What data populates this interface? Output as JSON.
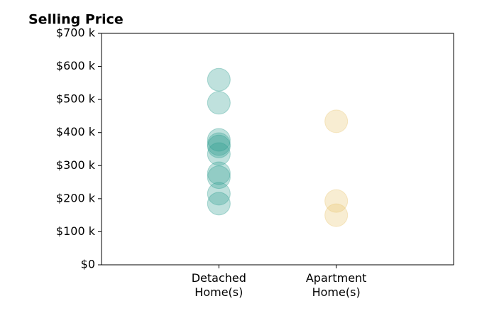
{
  "chart_data": {
    "type": "strip",
    "title": "Selling Price",
    "categories": [
      "Detached\nHome(s)",
      "Apartment\nHome(s)"
    ],
    "values": [
      [
        560000,
        490000,
        378000,
        365000,
        358000,
        335000,
        277000,
        265000,
        215000,
        185000
      ],
      [
        434000,
        193000,
        150000
      ]
    ],
    "colors": [
      "#2a9d8f",
      "#e9c46a"
    ],
    "ylim": [
      0,
      700000
    ],
    "yticks": [
      {
        "value": 0,
        "label": "$0"
      },
      {
        "value": 100000,
        "label": "$100 k"
      },
      {
        "value": 200000,
        "label": "$200 k"
      },
      {
        "value": 300000,
        "label": "$300 k"
      },
      {
        "value": 400000,
        "label": "$400 k"
      },
      {
        "value": 500000,
        "label": "$500 k"
      },
      {
        "value": 600000,
        "label": "$600 k"
      },
      {
        "value": 700000,
        "label": "$700 k"
      }
    ]
  }
}
